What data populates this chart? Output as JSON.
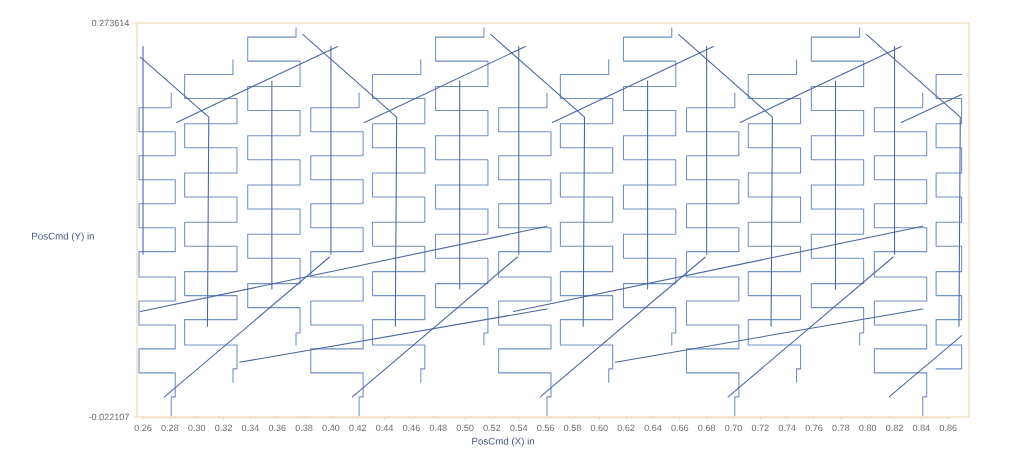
{
  "chart_data": {
    "type": "line",
    "xlabel": "PosCmd (X) in",
    "ylabel": "PosCmd (Y) in",
    "xlim": [
      0.2555,
      0.8755
    ],
    "ylim": [
      -0.022107,
      0.273614
    ],
    "xticks": [
      0.26,
      0.28,
      {
        "value": 0.3,
        "label": "0.30"
      },
      0.32,
      0.34,
      0.36,
      0.38,
      {
        "value": 0.4,
        "label": "0.40"
      },
      0.42,
      0.44,
      0.46,
      0.48,
      {
        "value": 0.5,
        "label": "0.50"
      },
      0.52,
      0.54,
      0.56,
      0.58,
      {
        "value": 0.6,
        "label": "0.60"
      },
      0.62,
      0.64,
      0.66,
      0.68,
      {
        "value": 0.7,
        "label": "0.70"
      },
      0.72,
      0.74,
      0.76,
      0.78,
      {
        "value": 0.8,
        "label": "0.80"
      },
      0.82,
      0.84,
      0.86
    ],
    "yticks": [
      -0.022107,
      0.273614
    ],
    "series": [
      {
        "color": "#7090c6",
        "x": [
          0.281,
          0.281,
          0.257,
          0.257,
          0.284,
          0.284,
          0.257,
          0.257,
          0.284,
          0.284,
          0.257,
          0.257,
          0.284,
          0.284,
          0.257,
          0.257,
          0.284,
          0.284,
          0.257,
          0.257,
          0.284,
          0.284,
          0.257,
          0.257,
          0.284,
          0.284,
          0.281,
          0.281
        ],
        "values": [
          0.221,
          0.21,
          0.21,
          0.192,
          0.192,
          0.174,
          0.174,
          0.156,
          0.156,
          0.138,
          0.138,
          0.12,
          0.12,
          0.102,
          0.102,
          0.083,
          0.083,
          0.065,
          0.065,
          0.047,
          0.047,
          0.029,
          0.029,
          0.011,
          0.011,
          -0.007,
          -0.007,
          -0.021
        ]
      },
      {
        "color": "#7090c6",
        "x": [
          0.327,
          0.327,
          0.291,
          0.291,
          0.33,
          0.33,
          0.291,
          0.291,
          0.33,
          0.33,
          0.291,
          0.291,
          0.33,
          0.33,
          0.291,
          0.291,
          0.33,
          0.33,
          0.291,
          0.291,
          0.33,
          0.33,
          0.291,
          0.291,
          0.33,
          0.33,
          0.327,
          0.327
        ],
        "values": [
          0.246,
          0.235,
          0.235,
          0.217,
          0.217,
          0.198,
          0.198,
          0.18,
          0.18,
          0.161,
          0.161,
          0.143,
          0.143,
          0.124,
          0.124,
          0.106,
          0.106,
          0.087,
          0.087,
          0.069,
          0.069,
          0.051,
          0.051,
          0.032,
          0.032,
          0.014,
          0.014,
          0.004
        ]
      },
      {
        "color": "#7090c6",
        "x": [
          0.374,
          0.374,
          0.338,
          0.338,
          0.377,
          0.377,
          0.338,
          0.338,
          0.377,
          0.377,
          0.338,
          0.338,
          0.377,
          0.377,
          0.338,
          0.338,
          0.377,
          0.377,
          0.338,
          0.338,
          0.377,
          0.377,
          0.338,
          0.338,
          0.377,
          0.377,
          0.374,
          0.374
        ],
        "values": [
          0.27,
          0.263,
          0.263,
          0.245,
          0.245,
          0.226,
          0.226,
          0.208,
          0.208,
          0.189,
          0.189,
          0.171,
          0.171,
          0.152,
          0.152,
          0.134,
          0.134,
          0.115,
          0.115,
          0.097,
          0.097,
          0.078,
          0.078,
          0.06,
          0.06,
          0.041,
          0.041,
          0.032
        ]
      },
      {
        "color": "#7090c6",
        "x": [
          0.421,
          0.421,
          0.385,
          0.385,
          0.424,
          0.424,
          0.385,
          0.385,
          0.424,
          0.424,
          0.385,
          0.385,
          0.424,
          0.424,
          0.385,
          0.385,
          0.424,
          0.424,
          0.385,
          0.385,
          0.424,
          0.424,
          0.385,
          0.385,
          0.424,
          0.424,
          0.421,
          0.421
        ],
        "values": [
          0.221,
          0.21,
          0.21,
          0.192,
          0.192,
          0.174,
          0.174,
          0.156,
          0.156,
          0.138,
          0.138,
          0.12,
          0.12,
          0.102,
          0.102,
          0.083,
          0.083,
          0.065,
          0.065,
          0.047,
          0.047,
          0.029,
          0.029,
          0.011,
          0.011,
          -0.007,
          -0.007,
          -0.021
        ]
      },
      {
        "color": "#7090c6",
        "x": [
          0.467,
          0.467,
          0.431,
          0.431,
          0.47,
          0.47,
          0.431,
          0.431,
          0.47,
          0.47,
          0.431,
          0.431,
          0.47,
          0.47,
          0.431,
          0.431,
          0.47,
          0.47,
          0.431,
          0.431,
          0.47,
          0.47,
          0.431,
          0.431,
          0.47,
          0.47,
          0.467,
          0.467
        ],
        "values": [
          0.246,
          0.235,
          0.235,
          0.217,
          0.217,
          0.198,
          0.198,
          0.18,
          0.18,
          0.161,
          0.161,
          0.143,
          0.143,
          0.124,
          0.124,
          0.106,
          0.106,
          0.087,
          0.087,
          0.069,
          0.069,
          0.051,
          0.051,
          0.032,
          0.032,
          0.014,
          0.014,
          0.004
        ]
      },
      {
        "color": "#7090c6",
        "x": [
          0.514,
          0.514,
          0.478,
          0.478,
          0.517,
          0.517,
          0.478,
          0.478,
          0.517,
          0.517,
          0.478,
          0.478,
          0.517,
          0.517,
          0.478,
          0.478,
          0.517,
          0.517,
          0.478,
          0.478,
          0.517,
          0.517,
          0.478,
          0.478,
          0.517,
          0.517,
          0.514,
          0.514
        ],
        "values": [
          0.27,
          0.263,
          0.263,
          0.245,
          0.245,
          0.226,
          0.226,
          0.208,
          0.208,
          0.189,
          0.189,
          0.171,
          0.171,
          0.152,
          0.152,
          0.134,
          0.134,
          0.115,
          0.115,
          0.097,
          0.097,
          0.078,
          0.078,
          0.06,
          0.06,
          0.041,
          0.041,
          0.032
        ]
      },
      {
        "color": "#7090c6",
        "x": [
          0.561,
          0.561,
          0.525,
          0.525,
          0.564,
          0.564,
          0.525,
          0.525,
          0.564,
          0.564,
          0.525,
          0.525,
          0.564,
          0.564,
          0.525,
          0.525,
          0.564,
          0.564,
          0.525,
          0.525,
          0.564,
          0.564,
          0.525,
          0.525,
          0.564,
          0.564,
          0.561,
          0.561
        ],
        "values": [
          0.221,
          0.21,
          0.21,
          0.192,
          0.192,
          0.174,
          0.174,
          0.156,
          0.156,
          0.138,
          0.138,
          0.12,
          0.12,
          0.102,
          0.102,
          0.083,
          0.083,
          0.065,
          0.065,
          0.047,
          0.047,
          0.029,
          0.029,
          0.011,
          0.011,
          -0.007,
          -0.007,
          -0.021
        ]
      },
      {
        "color": "#7090c6",
        "x": [
          0.607,
          0.607,
          0.571,
          0.571,
          0.61,
          0.61,
          0.571,
          0.571,
          0.61,
          0.61,
          0.571,
          0.571,
          0.61,
          0.61,
          0.571,
          0.571,
          0.61,
          0.61,
          0.571,
          0.571,
          0.61,
          0.61,
          0.571,
          0.571,
          0.61,
          0.61,
          0.607,
          0.607
        ],
        "values": [
          0.246,
          0.235,
          0.235,
          0.217,
          0.217,
          0.198,
          0.198,
          0.18,
          0.18,
          0.161,
          0.161,
          0.143,
          0.143,
          0.124,
          0.124,
          0.106,
          0.106,
          0.087,
          0.087,
          0.069,
          0.069,
          0.051,
          0.051,
          0.032,
          0.032,
          0.014,
          0.014,
          0.004
        ]
      },
      {
        "color": "#7090c6",
        "x": [
          0.654,
          0.654,
          0.618,
          0.618,
          0.657,
          0.657,
          0.618,
          0.618,
          0.657,
          0.657,
          0.618,
          0.618,
          0.657,
          0.657,
          0.618,
          0.618,
          0.657,
          0.657,
          0.618,
          0.618,
          0.657,
          0.657,
          0.618,
          0.618,
          0.657,
          0.657,
          0.654,
          0.654
        ],
        "values": [
          0.27,
          0.263,
          0.263,
          0.245,
          0.245,
          0.226,
          0.226,
          0.208,
          0.208,
          0.189,
          0.189,
          0.171,
          0.171,
          0.152,
          0.152,
          0.134,
          0.134,
          0.115,
          0.115,
          0.097,
          0.097,
          0.078,
          0.078,
          0.06,
          0.06,
          0.041,
          0.041,
          0.032
        ]
      },
      {
        "color": "#7090c6",
        "x": [
          0.701,
          0.701,
          0.665,
          0.665,
          0.704,
          0.704,
          0.665,
          0.665,
          0.704,
          0.704,
          0.665,
          0.665,
          0.704,
          0.704,
          0.665,
          0.665,
          0.704,
          0.704,
          0.665,
          0.665,
          0.704,
          0.704,
          0.665,
          0.665,
          0.704,
          0.704,
          0.701,
          0.701
        ],
        "values": [
          0.221,
          0.21,
          0.21,
          0.192,
          0.192,
          0.174,
          0.174,
          0.156,
          0.156,
          0.138,
          0.138,
          0.12,
          0.12,
          0.102,
          0.102,
          0.083,
          0.083,
          0.065,
          0.065,
          0.047,
          0.047,
          0.029,
          0.029,
          0.011,
          0.011,
          -0.007,
          -0.007,
          -0.021
        ]
      },
      {
        "color": "#7090c6",
        "x": [
          0.747,
          0.747,
          0.711,
          0.711,
          0.75,
          0.75,
          0.711,
          0.711,
          0.75,
          0.75,
          0.711,
          0.711,
          0.75,
          0.75,
          0.711,
          0.711,
          0.75,
          0.75,
          0.711,
          0.711,
          0.75,
          0.75,
          0.711,
          0.711,
          0.75,
          0.75,
          0.747,
          0.747
        ],
        "values": [
          0.246,
          0.235,
          0.235,
          0.217,
          0.217,
          0.198,
          0.198,
          0.18,
          0.18,
          0.161,
          0.161,
          0.143,
          0.143,
          0.124,
          0.124,
          0.106,
          0.106,
          0.087,
          0.087,
          0.069,
          0.069,
          0.051,
          0.051,
          0.032,
          0.032,
          0.014,
          0.014,
          0.004
        ]
      },
      {
        "color": "#7090c6",
        "x": [
          0.794,
          0.794,
          0.758,
          0.758,
          0.797,
          0.797,
          0.758,
          0.758,
          0.797,
          0.797,
          0.758,
          0.758,
          0.797,
          0.797,
          0.758,
          0.758,
          0.797,
          0.797,
          0.758,
          0.758,
          0.797,
          0.797,
          0.758,
          0.758,
          0.797,
          0.797,
          0.794,
          0.794
        ],
        "values": [
          0.27,
          0.263,
          0.263,
          0.245,
          0.245,
          0.226,
          0.226,
          0.208,
          0.208,
          0.189,
          0.189,
          0.171,
          0.171,
          0.152,
          0.152,
          0.134,
          0.134,
          0.115,
          0.115,
          0.097,
          0.097,
          0.078,
          0.078,
          0.06,
          0.06,
          0.041,
          0.041,
          0.032
        ]
      },
      {
        "color": "#7090c6",
        "x": [
          0.841,
          0.841,
          0.805,
          0.805,
          0.844,
          0.844,
          0.805,
          0.805,
          0.844,
          0.844,
          0.805,
          0.805,
          0.844,
          0.844,
          0.805,
          0.805,
          0.844,
          0.844,
          0.805,
          0.805,
          0.844,
          0.844,
          0.805,
          0.805,
          0.844,
          0.844,
          0.841,
          0.841
        ],
        "values": [
          0.221,
          0.21,
          0.21,
          0.192,
          0.192,
          0.174,
          0.174,
          0.156,
          0.156,
          0.138,
          0.138,
          0.12,
          0.12,
          0.102,
          0.102,
          0.083,
          0.083,
          0.065,
          0.065,
          0.047,
          0.047,
          0.029,
          0.029,
          0.011,
          0.011,
          -0.007,
          -0.007,
          -0.021
        ]
      },
      {
        "color": "#7090c6",
        "x": [
          0.87,
          0.851,
          0.851,
          0.87,
          0.87,
          0.851,
          0.851,
          0.87,
          0.87,
          0.851,
          0.851,
          0.87,
          0.87,
          0.851,
          0.851,
          0.87,
          0.87,
          0.851,
          0.851,
          0.87,
          0.87,
          0.851,
          0.851,
          0.87,
          0.87,
          0.851
        ],
        "values": [
          0.235,
          0.235,
          0.217,
          0.217,
          0.198,
          0.198,
          0.18,
          0.18,
          0.161,
          0.161,
          0.143,
          0.143,
          0.124,
          0.124,
          0.106,
          0.106,
          0.087,
          0.087,
          0.069,
          0.069,
          0.051,
          0.051,
          0.032,
          0.032,
          0.014,
          0.014
        ]
      },
      {
        "color": "#4a66a3",
        "x": [
          0.258,
          0.309,
          0.308
        ],
        "values": [
          0.248,
          0.203,
          0.046
        ]
      },
      {
        "color": "#4a66a3",
        "x": [
          0.379,
          0.449,
          0.448
        ],
        "values": [
          0.265,
          0.203,
          0.046
        ]
      },
      {
        "color": "#4a66a3",
        "x": [
          0.519,
          0.589,
          0.588
        ],
        "values": [
          0.265,
          0.203,
          0.046
        ]
      },
      {
        "color": "#4a66a3",
        "x": [
          0.659,
          0.729,
          0.728
        ],
        "values": [
          0.265,
          0.203,
          0.046
        ]
      },
      {
        "color": "#4a66a3",
        "x": [
          0.799,
          0.869,
          0.868
        ],
        "values": [
          0.265,
          0.203,
          0.046
        ]
      },
      {
        "color": "#4a66a3",
        "x": [
          0.26,
          0.26
        ],
        "values": [
          0.256,
          0.1
        ]
      },
      {
        "color": "#4a66a3",
        "x": [
          0.4,
          0.4
        ],
        "values": [
          0.256,
          0.1
        ]
      },
      {
        "color": "#4a66a3",
        "x": [
          0.54,
          0.54
        ],
        "values": [
          0.256,
          0.1
        ]
      },
      {
        "color": "#4a66a3",
        "x": [
          0.68,
          0.68
        ],
        "values": [
          0.256,
          0.1
        ]
      },
      {
        "color": "#4a66a3",
        "x": [
          0.82,
          0.82
        ],
        "values": [
          0.256,
          0.1
        ]
      },
      {
        "color": "#4a66a3",
        "x": [
          0.356,
          0.356
        ],
        "values": [
          0.23,
          0.074
        ]
      },
      {
        "color": "#4a66a3",
        "x": [
          0.496,
          0.496
        ],
        "values": [
          0.23,
          0.074
        ]
      },
      {
        "color": "#4a66a3",
        "x": [
          0.636,
          0.636
        ],
        "values": [
          0.23,
          0.074
        ]
      },
      {
        "color": "#4a66a3",
        "x": [
          0.776,
          0.776
        ],
        "values": [
          0.23,
          0.074
        ]
      },
      {
        "color": "#4a66a3",
        "x": [
          0.276,
          0.399
        ],
        "values": [
          -0.007,
          0.098
        ]
      },
      {
        "color": "#4a66a3",
        "x": [
          0.416,
          0.539
        ],
        "values": [
          -0.007,
          0.098
        ]
      },
      {
        "color": "#4a66a3",
        "x": [
          0.556,
          0.679
        ],
        "values": [
          -0.007,
          0.098
        ]
      },
      {
        "color": "#4a66a3",
        "x": [
          0.696,
          0.819
        ],
        "values": [
          -0.007,
          0.098
        ]
      },
      {
        "color": "#4a66a3",
        "x": [
          0.816,
          0.87
        ],
        "values": [
          -0.007,
          0.039
        ]
      },
      {
        "color": "#4a66a3",
        "x": [
          0.285,
          0.405
        ],
        "values": [
          0.199,
          0.256
        ]
      },
      {
        "color": "#4a66a3",
        "x": [
          0.425,
          0.545
        ],
        "values": [
          0.199,
          0.256
        ]
      },
      {
        "color": "#4a66a3",
        "x": [
          0.565,
          0.685
        ],
        "values": [
          0.199,
          0.256
        ]
      },
      {
        "color": "#4a66a3",
        "x": [
          0.705,
          0.825
        ],
        "values": [
          0.199,
          0.256
        ]
      },
      {
        "color": "#4a66a3",
        "x": [
          0.825,
          0.87
        ],
        "values": [
          0.199,
          0.22
        ]
      },
      {
        "color": "#4a66a3",
        "x": [
          0.258,
          0.561
        ],
        "values": [
          0.057,
          0.121
        ]
      },
      {
        "color": "#4a66a3",
        "x": [
          0.536,
          0.841
        ],
        "values": [
          0.057,
          0.121
        ]
      },
      {
        "color": "#4a66a3",
        "x": [
          0.332,
          0.561
        ],
        "values": [
          0.019,
          0.059
        ]
      },
      {
        "color": "#4a66a3",
        "x": [
          0.612,
          0.841
        ],
        "values": [
          0.019,
          0.059
        ]
      }
    ]
  }
}
